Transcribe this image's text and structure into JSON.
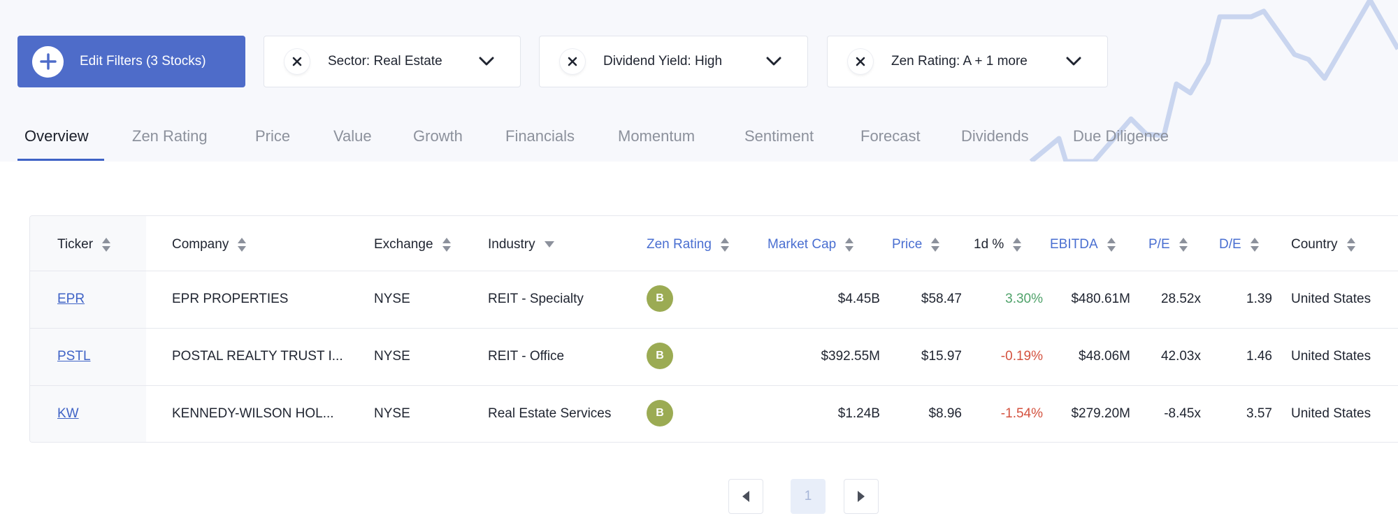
{
  "filters": {
    "edit_label": "Edit Filters (3 Stocks)",
    "chips": [
      {
        "label": "Sector: Real Estate"
      },
      {
        "label": "Dividend Yield: High"
      },
      {
        "label": "Zen Rating: A + 1 more"
      }
    ]
  },
  "tabs": [
    "Overview",
    "Zen Rating",
    "Price",
    "Value",
    "Growth",
    "Financials",
    "Momentum",
    "Sentiment",
    "Forecast",
    "Dividends",
    "Due Diligence"
  ],
  "active_tab": "Overview",
  "table": {
    "columns": [
      "Ticker",
      "Company",
      "Exchange",
      "Industry",
      "Zen Rating",
      "Market Cap",
      "Price",
      "1d %",
      "EBITDA",
      "P/E",
      "D/E",
      "Country"
    ],
    "rows": [
      {
        "ticker": "EPR",
        "company": "EPR PROPERTIES",
        "exchange": "NYSE",
        "industry": "REIT - Specialty",
        "zen": "B",
        "market_cap": "$4.45B",
        "price": "$58.47",
        "change": "3.30%",
        "ebitda": "$480.61M",
        "pe": "28.52x",
        "de": "1.39",
        "country": "United States"
      },
      {
        "ticker": "PSTL",
        "company": "POSTAL REALTY TRUST I...",
        "exchange": "NYSE",
        "industry": "REIT - Office",
        "zen": "B",
        "market_cap": "$392.55M",
        "price": "$15.97",
        "change": "-0.19%",
        "ebitda": "$48.06M",
        "pe": "42.03x",
        "de": "1.46",
        "country": "United States"
      },
      {
        "ticker": "KW",
        "company": "KENNEDY-WILSON HOL...",
        "exchange": "NYSE",
        "industry": "Real Estate Services",
        "zen": "B",
        "market_cap": "$1.24B",
        "price": "$8.96",
        "change": "-1.54%",
        "ebitda": "$279.20M",
        "pe": "-8.45x",
        "de": "3.57",
        "country": "United States"
      }
    ]
  },
  "pagination": {
    "current_page": "1"
  },
  "colors": {
    "accent": "#4e6cc9",
    "positive": "#4fa26a",
    "negative": "#d4523f",
    "zen_b": "#9bab53"
  }
}
